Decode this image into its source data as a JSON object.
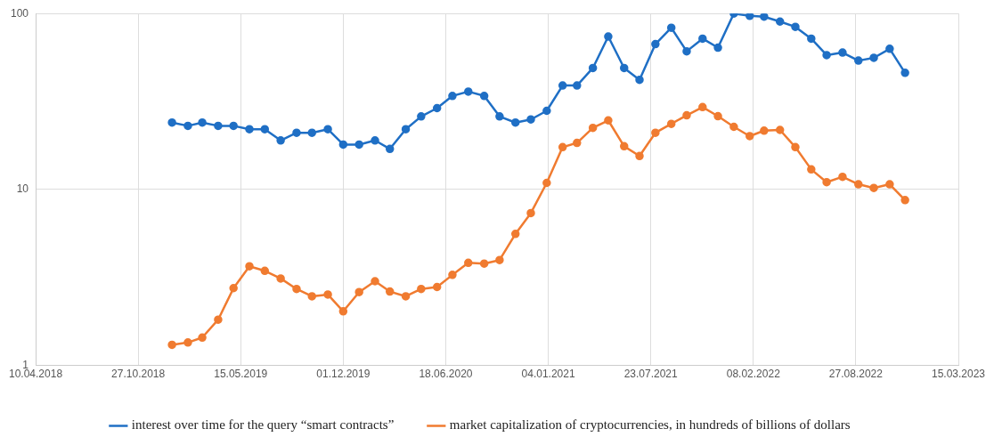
{
  "chart_data": {
    "type": "line",
    "x": [
      "2019-01",
      "2019-02",
      "2019-03",
      "2019-04",
      "2019-05",
      "2019-06",
      "2019-07",
      "2019-08",
      "2019-09",
      "2019-10",
      "2019-11",
      "2019-12",
      "2020-01",
      "2020-02",
      "2020-03",
      "2020-04",
      "2020-05",
      "2020-06",
      "2020-07",
      "2020-08",
      "2020-09",
      "2020-10",
      "2020-11",
      "2020-12",
      "2021-01",
      "2021-02",
      "2021-03",
      "2021-04",
      "2021-05",
      "2021-06",
      "2021-07",
      "2021-08",
      "2021-09",
      "2021-10",
      "2021-11",
      "2021-12",
      "2022-01",
      "2022-02",
      "2022-03",
      "2022-04",
      "2022-05",
      "2022-06",
      "2022-07",
      "2022-08",
      "2022-09",
      "2022-10",
      "2022-11",
      "2022-12"
    ],
    "series": [
      {
        "name": "interest over time for the query “smart contracts”",
        "color": "#1f6fc5",
        "values": [
          24,
          23,
          24,
          23,
          23,
          22,
          22,
          19,
          21,
          21,
          22,
          18,
          18,
          19,
          17,
          22,
          26,
          29,
          34,
          36,
          34,
          26,
          24,
          25,
          28,
          39,
          39,
          49,
          74,
          49,
          42,
          67,
          83,
          61,
          72,
          64,
          100,
          97,
          96,
          90,
          84,
          72,
          58,
          60,
          54,
          56,
          63,
          46
        ]
      },
      {
        "name": "market capitalization of cryptocurrencies, in hundreds of billions of dollars",
        "color": "#f07b30",
        "values": [
          1.31,
          1.35,
          1.44,
          1.82,
          2.75,
          3.66,
          3.45,
          3.12,
          2.72,
          2.47,
          2.53,
          2.03,
          2.61,
          3.01,
          2.63,
          2.47,
          2.72,
          2.79,
          3.27,
          3.83,
          3.79,
          3.97,
          5.59,
          7.34,
          10.9,
          17.4,
          18.4,
          22.4,
          24.7,
          17.6,
          15.5,
          21.0,
          23.6,
          26.4,
          29.4,
          26.1,
          22.7,
          20.1,
          21.6,
          21.8,
          17.4,
          13.0,
          11.0,
          11.8,
          10.7,
          10.2,
          10.7,
          8.7
        ]
      }
    ],
    "xlim": [
      "2018-04-10",
      "2023-03-15"
    ],
    "xticks": [
      {
        "value": "2018-04-10",
        "label": "10.04.2018"
      },
      {
        "value": "2018-10-27",
        "label": "27.10.2018"
      },
      {
        "value": "2019-05-15",
        "label": "15.05.2019"
      },
      {
        "value": "2019-12-01",
        "label": "01.12.2019"
      },
      {
        "value": "2020-06-18",
        "label": "18.06.2020"
      },
      {
        "value": "2021-01-04",
        "label": "04.01.2021"
      },
      {
        "value": "2021-07-23",
        "label": "23.07.2021"
      },
      {
        "value": "2022-02-08",
        "label": "08.02.2022"
      },
      {
        "value": "2022-08-27",
        "label": "27.08.2022"
      },
      {
        "value": "2023-03-15",
        "label": "15.03.2023"
      }
    ],
    "ylim": [
      1,
      100
    ],
    "yticks": [
      1,
      10,
      100
    ],
    "log": true,
    "grid": true,
    "legend": "bottom",
    "marker": "circle",
    "line_style": "solid"
  }
}
